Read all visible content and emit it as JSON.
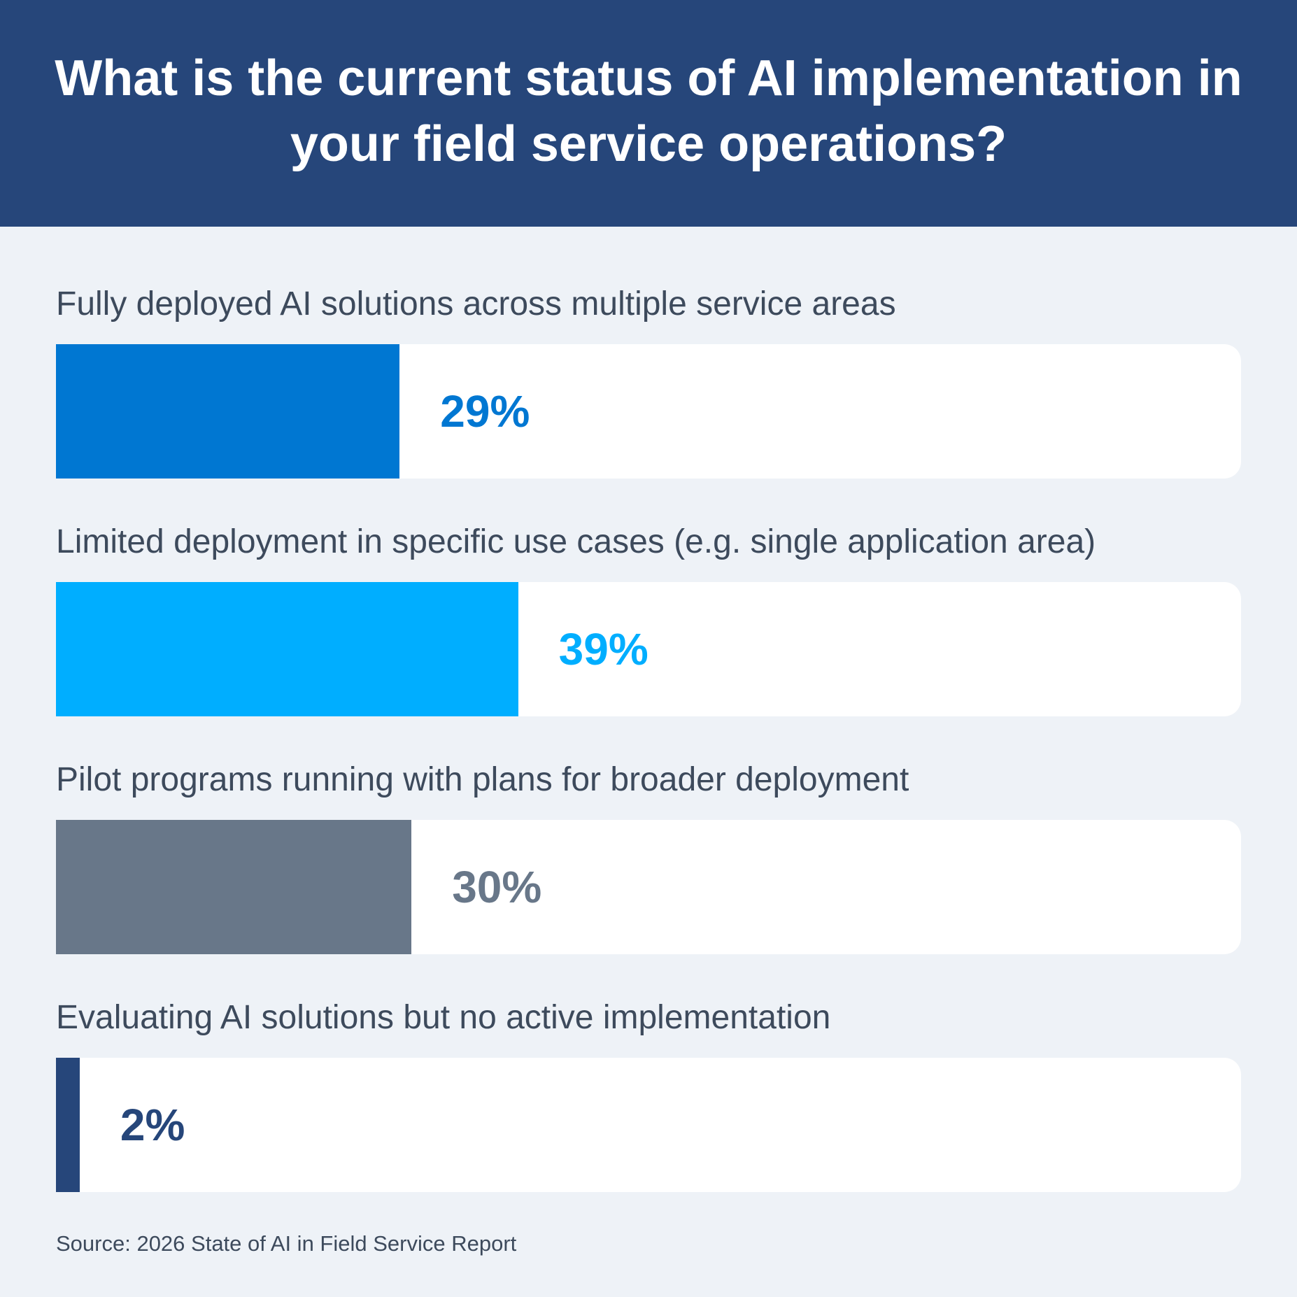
{
  "chart_data": {
    "type": "bar",
    "orientation": "horizontal",
    "title": "What is the current status of AI implementation in your field service operations?",
    "categories": [
      "Fully deployed AI solutions across multiple service areas",
      "Limited deployment in specific use cases (e.g. single application area)",
      "Pilot programs running with plans for broader deployment",
      "Evaluating AI solutions but no active implementation"
    ],
    "values": [
      29,
      39,
      30,
      2
    ],
    "value_labels": [
      "29%",
      "39%",
      "30%",
      "2%"
    ],
    "colors": [
      "#0077d2",
      "#00aeff",
      "#687789",
      "#26467a"
    ],
    "xlim": [
      0,
      100
    ],
    "grid": false,
    "source": "Source: 2026 State of AI in Field Service Report"
  },
  "colors": {
    "header": "#26467a",
    "background": "#eef2f7",
    "label_text": "#3d4a5c"
  }
}
